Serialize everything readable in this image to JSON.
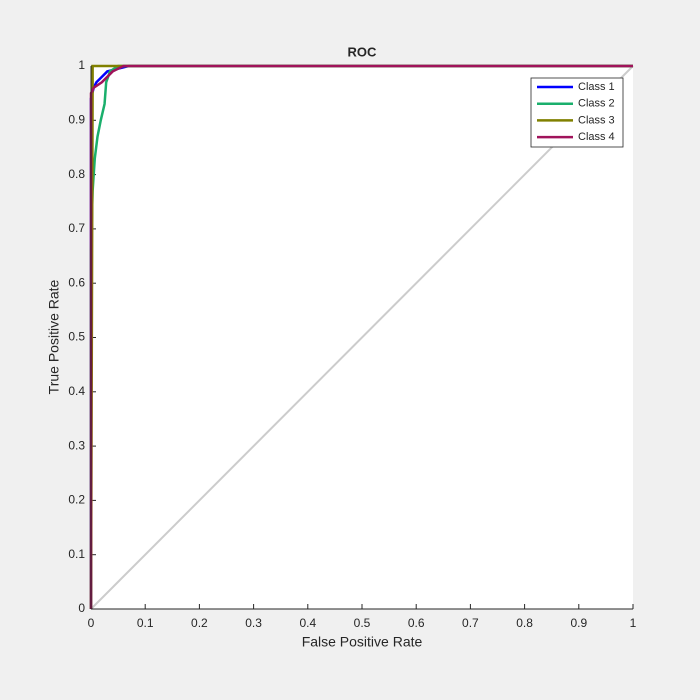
{
  "chart_data": {
    "type": "line",
    "title": "ROC",
    "x_label": "False Positive Rate",
    "y_label": "True Positive Rate",
    "xlim": [
      0,
      1
    ],
    "ylim": [
      0,
      1
    ],
    "xticks": [
      0,
      0.1,
      0.2,
      0.3,
      0.4,
      0.5,
      0.6,
      0.7,
      0.8,
      0.9,
      1
    ],
    "yticks": [
      0,
      0.1,
      0.2,
      0.3,
      0.4,
      0.5,
      0.6,
      0.7,
      0.8,
      0.9,
      1
    ],
    "legend": "upper right",
    "series": [
      {
        "name": "Class 1",
        "color": "#0000ff",
        "x": [
          0,
          0,
          0.005,
          0.01,
          0.02,
          0.03,
          0.05,
          0.07,
          1
        ],
        "values": [
          0,
          0.94,
          0.96,
          0.97,
          0.98,
          0.99,
          0.995,
          1,
          1
        ]
      },
      {
        "name": "Class 2",
        "color": "#1aaf6c",
        "x": [
          0,
          0,
          0.003,
          0.007,
          0.012,
          0.018,
          0.025,
          0.028,
          0.035,
          0.05,
          1
        ],
        "values": [
          0,
          0.66,
          0.77,
          0.83,
          0.87,
          0.9,
          0.93,
          0.97,
          0.99,
          1,
          1
        ]
      },
      {
        "name": "Class 3",
        "color": "#808000",
        "x": [
          0,
          0.003,
          0.003,
          1
        ],
        "values": [
          0,
          0.97,
          1,
          1
        ]
      },
      {
        "name": "Class 4",
        "color": "#a0135b",
        "x": [
          0,
          0,
          0.005,
          0.02,
          0.04,
          0.06,
          1
        ],
        "values": [
          0,
          0.95,
          0.96,
          0.97,
          0.99,
          1,
          1
        ]
      }
    ]
  }
}
